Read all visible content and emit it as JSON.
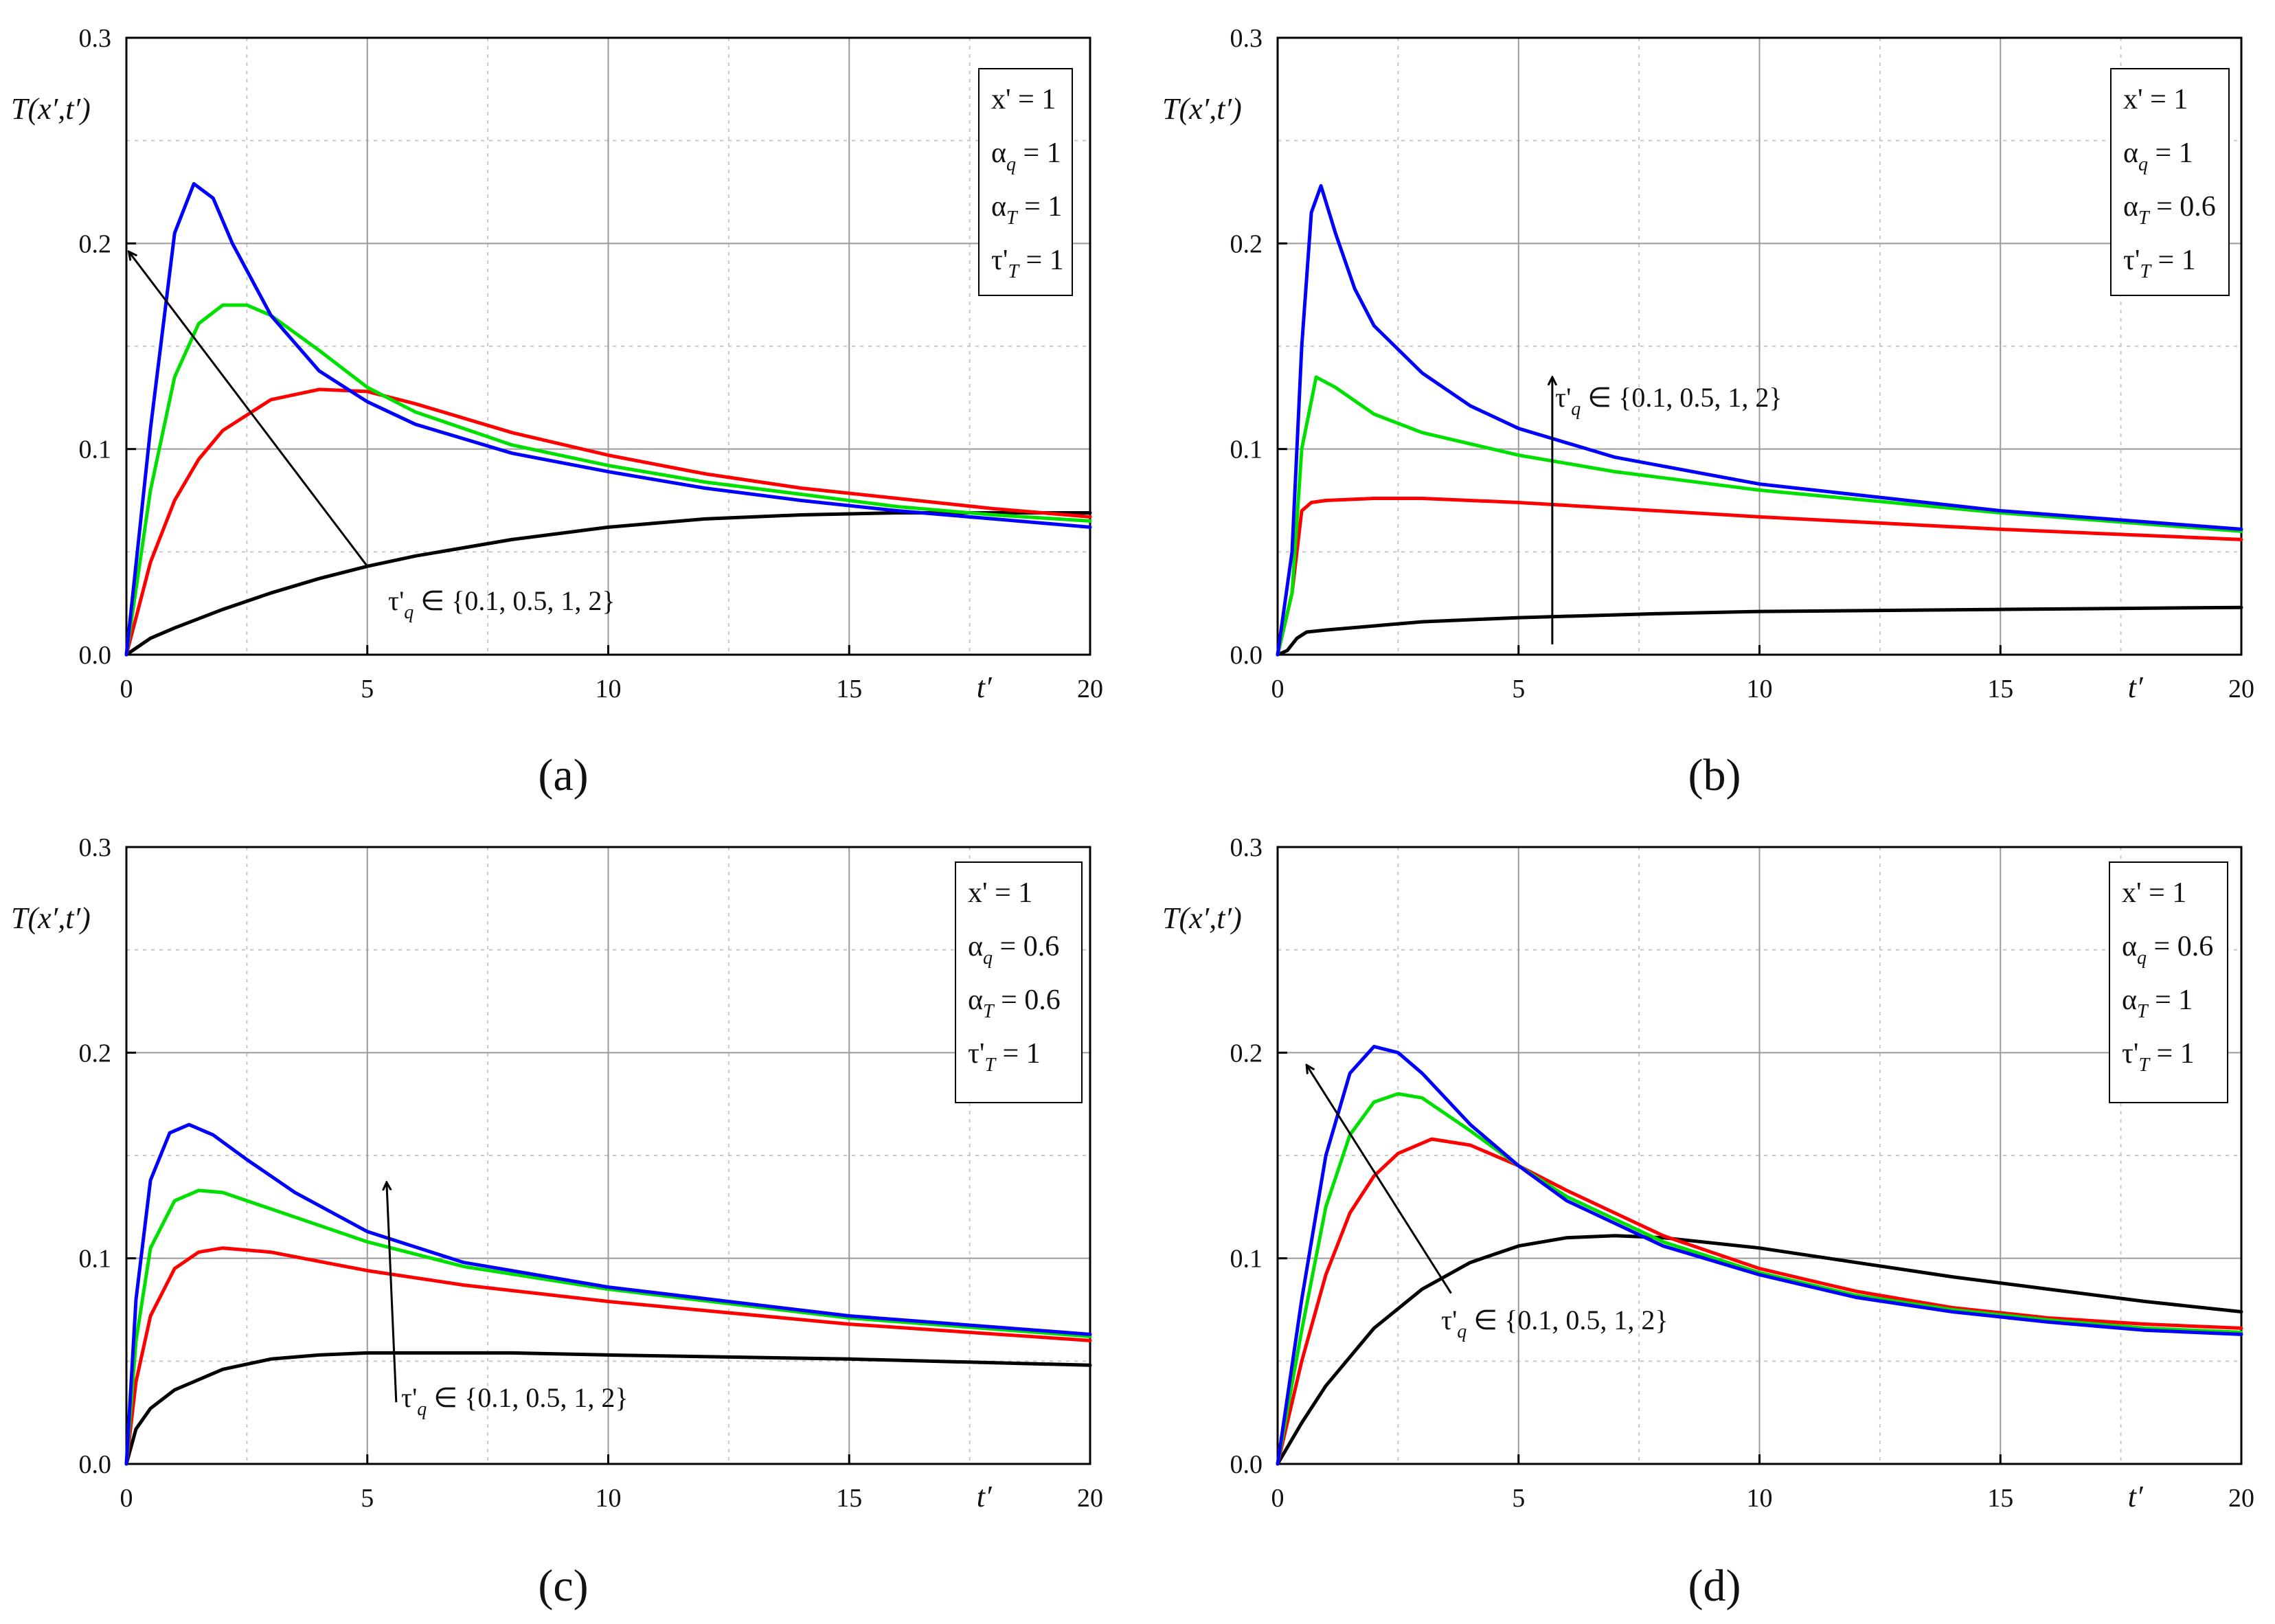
{
  "figure": {
    "y_axis_label": "T(x′,t′)",
    "x_axis_label": "t′",
    "series_colors": [
      "#000000",
      "#ff0000",
      "#00e000",
      "#0000ff"
    ]
  },
  "chart_data": [
    {
      "panel": "a",
      "caption": "(a)",
      "type": "line",
      "xlim": [
        0,
        20
      ],
      "ylim": [
        0,
        0.3
      ],
      "xticks": [
        "0",
        "5",
        "10",
        "15",
        "20"
      ],
      "yticks": [
        "0.0",
        "0.1",
        "0.2",
        "0.3"
      ],
      "grid": true,
      "legend": [
        "x' = 1",
        "α_q = 1",
        "α_T = 1",
        "τ'_T = 1"
      ],
      "annotation": "τ'_q ∈ {0.1, 0.5, 1, 2}",
      "arrow_data": {
        "from": [
          5.0,
          0.043
        ],
        "to": [
          0.05,
          0.196
        ]
      },
      "series": [
        {
          "name": "τ'q = 2",
          "color": "#000000",
          "x": [
            0,
            0.5,
            1,
            2,
            3,
            4,
            5,
            6,
            8,
            10,
            12,
            14,
            16,
            18,
            20
          ],
          "y": [
            0,
            0.008,
            0.013,
            0.022,
            0.03,
            0.037,
            0.043,
            0.048,
            0.056,
            0.062,
            0.066,
            0.068,
            0.069,
            0.069,
            0.069
          ]
        },
        {
          "name": "τ'q = 1",
          "color": "#ff0000",
          "x": [
            0,
            0.5,
            1,
            1.5,
            2,
            3,
            4,
            5,
            6,
            8,
            10,
            12,
            14,
            16,
            18,
            20
          ],
          "y": [
            0,
            0.045,
            0.075,
            0.095,
            0.109,
            0.124,
            0.129,
            0.128,
            0.122,
            0.108,
            0.097,
            0.088,
            0.081,
            0.076,
            0.071,
            0.067
          ]
        },
        {
          "name": "τ'q = 0.5",
          "color": "#00e000",
          "x": [
            0,
            0.5,
            1,
            1.5,
            2,
            2.5,
            3,
            4,
            5,
            6,
            8,
            10,
            12,
            14,
            16,
            18,
            20
          ],
          "y": [
            0,
            0.08,
            0.135,
            0.161,
            0.17,
            0.17,
            0.165,
            0.148,
            0.13,
            0.118,
            0.102,
            0.092,
            0.084,
            0.078,
            0.072,
            0.068,
            0.065
          ]
        },
        {
          "name": "τ'q = 0.1",
          "color": "#0000ff",
          "x": [
            0,
            0.5,
            1,
            1.4,
            1.8,
            2.2,
            3,
            4,
            5,
            6,
            8,
            10,
            12,
            14,
            16,
            18,
            20
          ],
          "y": [
            0,
            0.11,
            0.205,
            0.229,
            0.222,
            0.2,
            0.165,
            0.138,
            0.123,
            0.112,
            0.098,
            0.089,
            0.081,
            0.075,
            0.07,
            0.066,
            0.062
          ]
        }
      ]
    },
    {
      "panel": "b",
      "caption": "(b)",
      "type": "line",
      "xlim": [
        0,
        20
      ],
      "ylim": [
        0,
        0.3
      ],
      "xticks": [
        "0",
        "5",
        "10",
        "15",
        "20"
      ],
      "yticks": [
        "0.0",
        "0.1",
        "0.2",
        "0.3"
      ],
      "grid": true,
      "legend": [
        "x' = 1",
        "α_q = 1",
        "α_T = 0.6",
        "τ'_T = 1"
      ],
      "annotation": "τ'_q ∈ {0.1, 0.5, 1, 2}",
      "arrow_data": {
        "from": [
          5.7,
          0.005
        ],
        "to": [
          5.7,
          0.135
        ]
      },
      "series": [
        {
          "name": "τ'q = 2",
          "color": "#000000",
          "x": [
            0,
            0.2,
            0.4,
            0.6,
            1,
            2,
            3,
            5,
            8,
            10,
            15,
            20
          ],
          "y": [
            0,
            0.002,
            0.008,
            0.011,
            0.012,
            0.014,
            0.016,
            0.018,
            0.02,
            0.021,
            0.022,
            0.023
          ]
        },
        {
          "name": "τ'q = 1",
          "color": "#ff0000",
          "x": [
            0,
            0.3,
            0.5,
            0.7,
            1,
            2,
            3,
            5,
            10,
            15,
            20
          ],
          "y": [
            0,
            0.03,
            0.07,
            0.074,
            0.075,
            0.076,
            0.076,
            0.074,
            0.067,
            0.061,
            0.056
          ]
        },
        {
          "name": "τ'q = 0.5",
          "color": "#00e000",
          "x": [
            0,
            0.3,
            0.5,
            0.8,
            1.2,
            2,
            3,
            5,
            7,
            10,
            15,
            20
          ],
          "y": [
            0,
            0.03,
            0.1,
            0.135,
            0.13,
            0.117,
            0.108,
            0.097,
            0.089,
            0.08,
            0.069,
            0.06
          ]
        },
        {
          "name": "τ'q = 0.1",
          "color": "#0000ff",
          "x": [
            0,
            0.3,
            0.5,
            0.7,
            0.9,
            1.2,
            1.6,
            2,
            3,
            4,
            5,
            7,
            10,
            15,
            20
          ],
          "y": [
            0,
            0.05,
            0.15,
            0.215,
            0.228,
            0.205,
            0.178,
            0.16,
            0.137,
            0.121,
            0.11,
            0.096,
            0.083,
            0.07,
            0.061
          ]
        }
      ]
    },
    {
      "panel": "c",
      "caption": "(c)",
      "type": "line",
      "xlim": [
        0,
        20
      ],
      "ylim": [
        0,
        0.3
      ],
      "xticks": [
        "0",
        "5",
        "10",
        "15",
        "20"
      ],
      "yticks": [
        "0.0",
        "0.1",
        "0.2",
        "0.3"
      ],
      "grid": true,
      "legend": [
        "x' = 1",
        "α_q = 0.6",
        "α_T = 0.6",
        "τ'_T = 1"
      ],
      "annotation": "τ'_q ∈ {0.1, 0.5, 1, 2}",
      "arrow_data": {
        "from": [
          5.6,
          0.03
        ],
        "to": [
          5.4,
          0.137
        ]
      },
      "series": [
        {
          "name": "τ'q = 2",
          "color": "#000000",
          "x": [
            0,
            0.2,
            0.5,
            1,
            2,
            3,
            4,
            5,
            6,
            8,
            10,
            15,
            20
          ],
          "y": [
            0,
            0.017,
            0.027,
            0.036,
            0.046,
            0.051,
            0.053,
            0.054,
            0.054,
            0.054,
            0.053,
            0.051,
            0.048
          ]
        },
        {
          "name": "τ'q = 1",
          "color": "#ff0000",
          "x": [
            0,
            0.2,
            0.5,
            1,
            1.5,
            2,
            3,
            5,
            7,
            10,
            15,
            20
          ],
          "y": [
            0,
            0.04,
            0.072,
            0.095,
            0.103,
            0.105,
            0.103,
            0.094,
            0.087,
            0.079,
            0.068,
            0.06
          ]
        },
        {
          "name": "τ'q = 0.5",
          "color": "#00e000",
          "x": [
            0,
            0.2,
            0.5,
            1,
            1.5,
            2,
            3,
            5,
            7,
            10,
            15,
            20
          ],
          "y": [
            0,
            0.06,
            0.105,
            0.128,
            0.133,
            0.132,
            0.124,
            0.108,
            0.096,
            0.085,
            0.071,
            0.062
          ]
        },
        {
          "name": "τ'q = 0.1",
          "color": "#0000ff",
          "x": [
            0,
            0.2,
            0.5,
            0.9,
            1.3,
            1.8,
            2.5,
            3.5,
            5,
            7,
            10,
            15,
            20
          ],
          "y": [
            0,
            0.08,
            0.138,
            0.161,
            0.165,
            0.16,
            0.148,
            0.132,
            0.113,
            0.098,
            0.086,
            0.072,
            0.063
          ]
        }
      ]
    },
    {
      "panel": "d",
      "caption": "(d)",
      "type": "line",
      "xlim": [
        0,
        20
      ],
      "ylim": [
        0,
        0.3
      ],
      "xticks": [
        "0",
        "5",
        "10",
        "15",
        "20"
      ],
      "yticks": [
        "0.0",
        "0.1",
        "0.2",
        "0.3"
      ],
      "grid": true,
      "legend": [
        "x' = 1",
        "α_q = 0.6",
        "α_T = 1",
        "τ'_T = 1"
      ],
      "annotation": "τ'_q ∈ {0.1, 0.5, 1, 2}",
      "arrow_data": {
        "from": [
          3.6,
          0.083
        ],
        "to": [
          0.6,
          0.194
        ]
      },
      "series": [
        {
          "name": "τ'q = 2",
          "color": "#000000",
          "x": [
            0,
            0.5,
            1,
            2,
            3,
            4,
            5,
            6,
            7,
            8,
            10,
            12,
            14,
            16,
            18,
            20
          ],
          "y": [
            0,
            0.02,
            0.038,
            0.066,
            0.085,
            0.098,
            0.106,
            0.11,
            0.111,
            0.11,
            0.105,
            0.098,
            0.091,
            0.085,
            0.079,
            0.074
          ]
        },
        {
          "name": "τ'q = 1",
          "color": "#ff0000",
          "x": [
            0,
            0.5,
            1,
            1.5,
            2,
            2.5,
            3.2,
            4,
            5,
            6,
            8,
            10,
            12,
            14,
            16,
            18,
            20
          ],
          "y": [
            0,
            0.05,
            0.092,
            0.122,
            0.14,
            0.151,
            0.158,
            0.155,
            0.145,
            0.133,
            0.111,
            0.095,
            0.084,
            0.076,
            0.071,
            0.068,
            0.066
          ]
        },
        {
          "name": "τ'q = 0.5",
          "color": "#00e000",
          "x": [
            0,
            0.5,
            1,
            1.5,
            2,
            2.5,
            3,
            4,
            5,
            6,
            8,
            10,
            12,
            14,
            16,
            18,
            20
          ],
          "y": [
            0,
            0.065,
            0.125,
            0.16,
            0.176,
            0.18,
            0.178,
            0.162,
            0.145,
            0.13,
            0.108,
            0.093,
            0.082,
            0.075,
            0.07,
            0.066,
            0.064
          ]
        },
        {
          "name": "τ'q = 0.1",
          "color": "#0000ff",
          "x": [
            0,
            0.5,
            1,
            1.5,
            2,
            2.5,
            3,
            4,
            5,
            6,
            8,
            10,
            12,
            14,
            16,
            18,
            20
          ],
          "y": [
            0,
            0.08,
            0.15,
            0.19,
            0.203,
            0.2,
            0.19,
            0.165,
            0.145,
            0.128,
            0.106,
            0.092,
            0.081,
            0.074,
            0.069,
            0.065,
            0.063
          ]
        }
      ]
    }
  ]
}
